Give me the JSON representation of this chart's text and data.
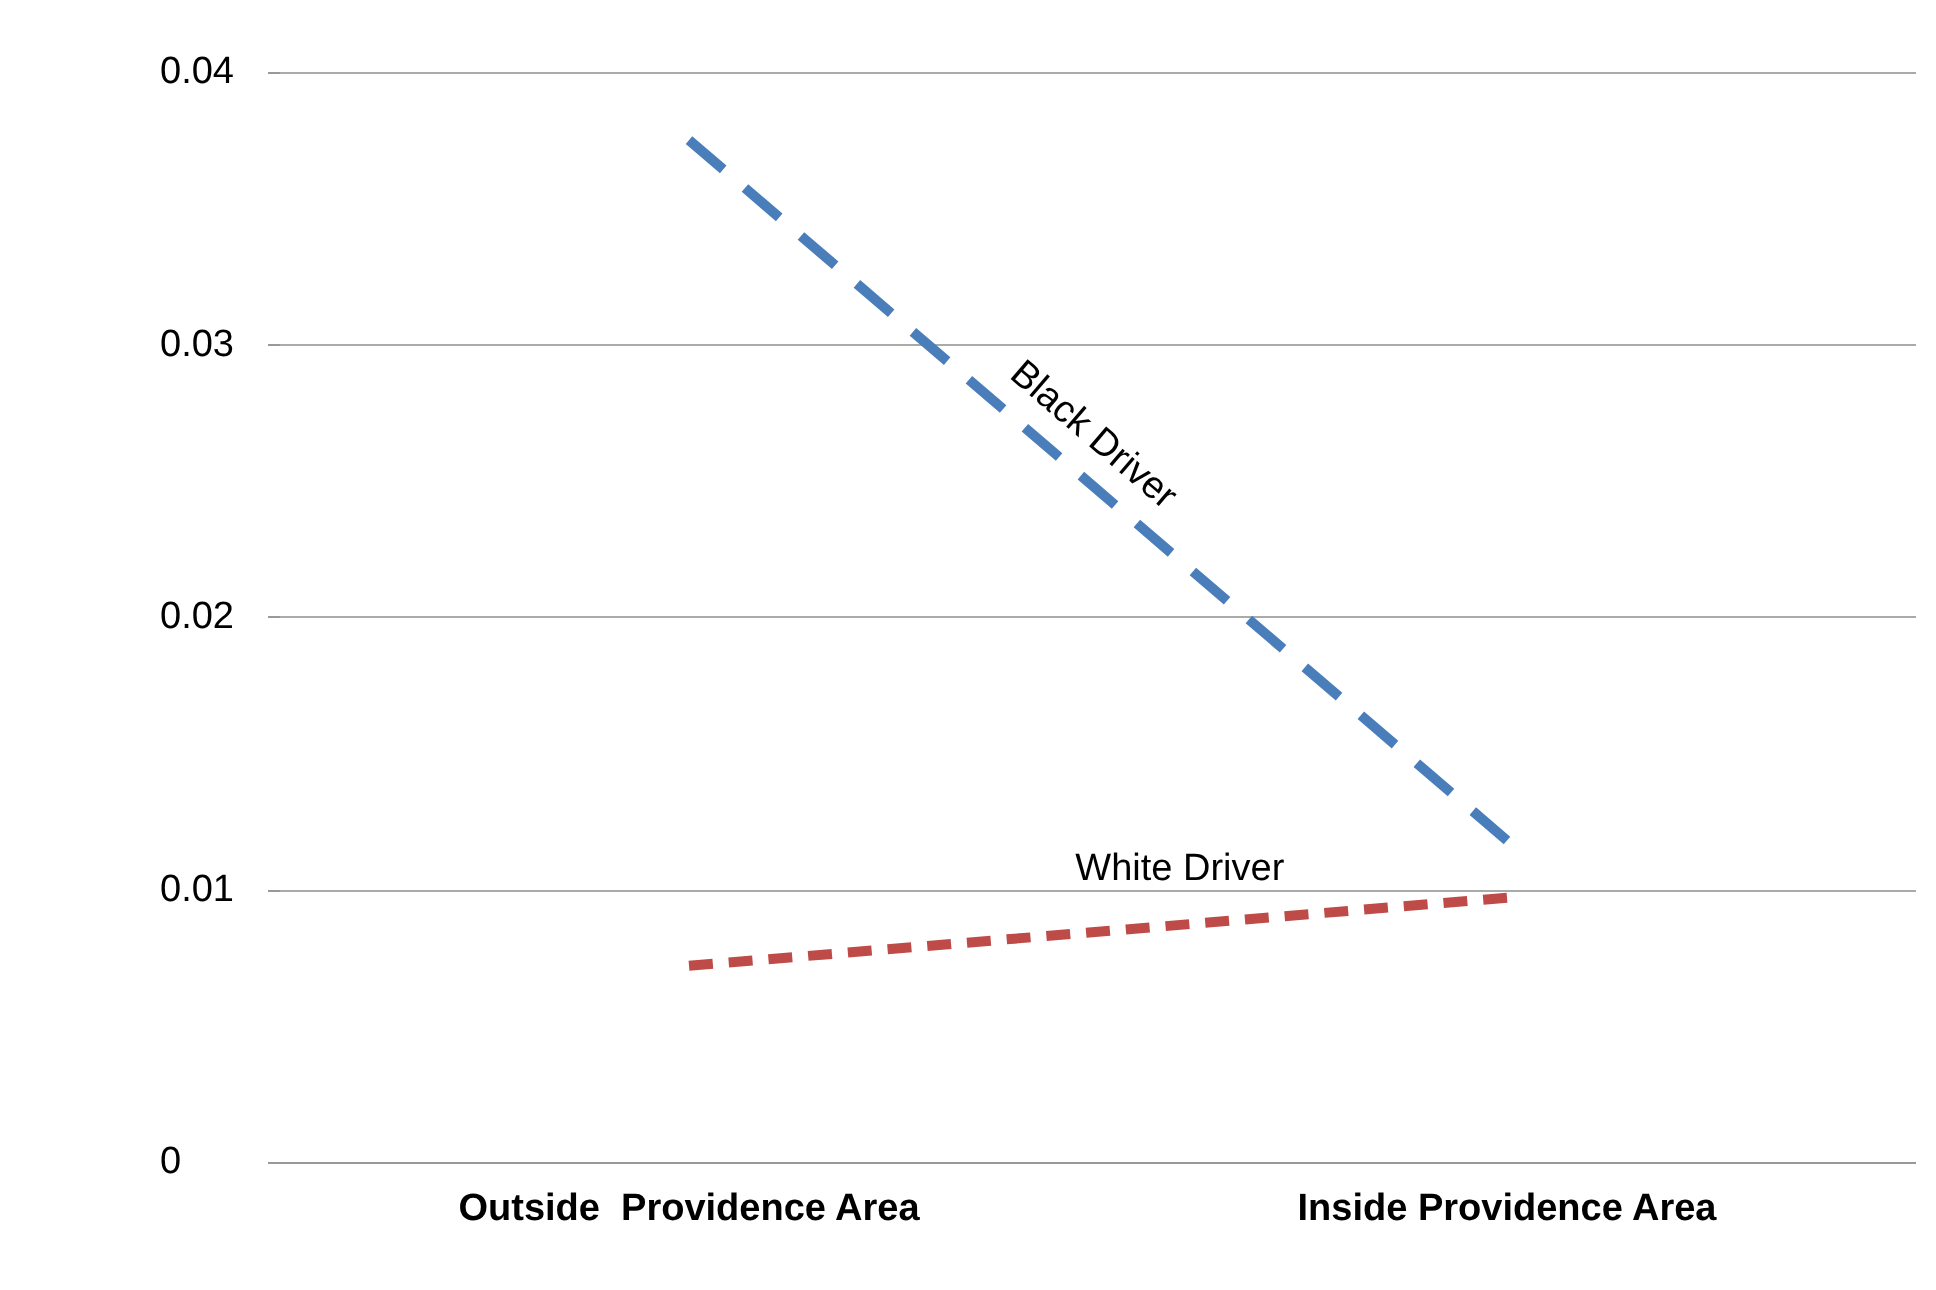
{
  "chart_data": {
    "type": "line",
    "categories": [
      "Outside  Providence Area",
      "Inside Providence Area"
    ],
    "series": [
      {
        "name": "Black Driver",
        "color": "#4a7ebb",
        "values": [
          0.0375,
          0.0118
        ],
        "line_style": "dashed"
      },
      {
        "name": "White Driver",
        "color": "#be4b48",
        "values": [
          0.0072,
          0.0097
        ],
        "line_style": "dashed"
      }
    ],
    "ylim": [
      0,
      0.04
    ],
    "yticks": [
      0,
      0.01,
      0.02,
      0.03,
      0.04
    ],
    "grid": "y",
    "legend": false,
    "marker": "none"
  }
}
